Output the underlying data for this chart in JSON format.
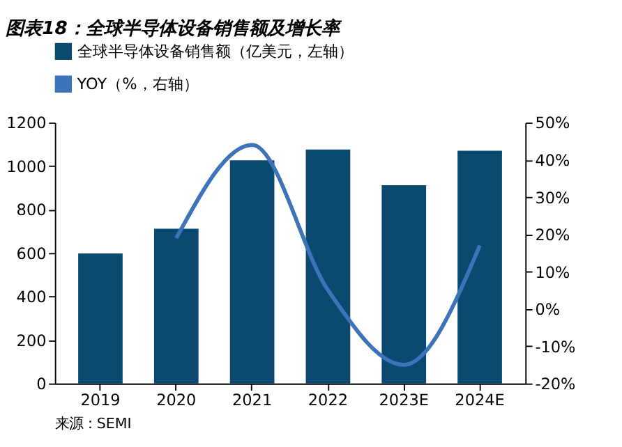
{
  "chart_data": {
    "type": "bar",
    "title": "图表18：全球半导体设备销售额及增长率",
    "categories": [
      "2019",
      "2020",
      "2021",
      "2022",
      "2023E",
      "2024E"
    ],
    "series": [
      {
        "name": "全球半导体设备销售额（亿美元，左轴）",
        "color": "#0b4a70",
        "values": [
          598,
          712,
          1026,
          1076,
          912,
          1070
        ]
      },
      {
        "name": "YOY（%，右轴）",
        "type": "line",
        "axis": "y2",
        "color": "#3d73b8",
        "values": [
          null,
          19,
          44,
          5,
          -15,
          17
        ]
      }
    ],
    "ylim": [
      0,
      1200
    ],
    "yticks": [
      0,
      200,
      400,
      600,
      800,
      1000,
      1200
    ],
    "y2lim": [
      -20,
      50
    ],
    "y2ticks": [
      {
        "value": -20,
        "label": "-20%"
      },
      {
        "value": -10,
        "label": "-10%"
      },
      {
        "value": 0,
        "label": "0%"
      },
      {
        "value": 10,
        "label": "10%"
      },
      {
        "value": 20,
        "label": "20%"
      },
      {
        "value": 30,
        "label": "30%"
      },
      {
        "value": 40,
        "label": "40%"
      },
      {
        "value": 50,
        "label": "50%"
      }
    ],
    "legend": "top",
    "grid": false,
    "annotations": [
      "来源：SEMI"
    ]
  }
}
